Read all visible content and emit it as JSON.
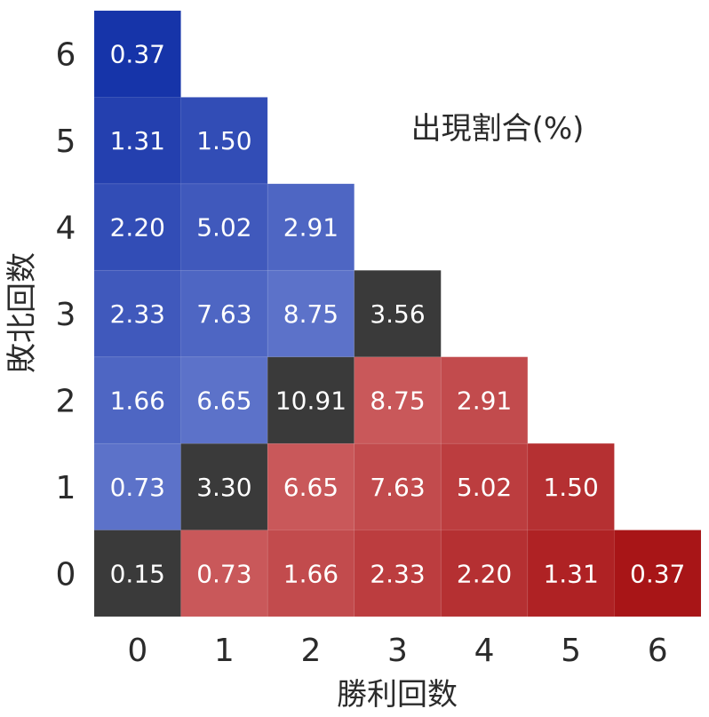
{
  "chart_data": {
    "type": "heatmap",
    "title": "",
    "xlabel": "勝利回数",
    "ylabel": "敗北回数",
    "annotation": "出現割合(%)",
    "x_categories": [
      "0",
      "1",
      "2",
      "3",
      "4",
      "5",
      "6"
    ],
    "y_categories": [
      "0",
      "1",
      "2",
      "3",
      "4",
      "5",
      "6"
    ],
    "cells": [
      {
        "x": 0,
        "y": 0,
        "value": "0.15",
        "group": "draw"
      },
      {
        "x": 1,
        "y": 0,
        "value": "0.73",
        "group": "win"
      },
      {
        "x": 2,
        "y": 0,
        "value": "1.66",
        "group": "win"
      },
      {
        "x": 3,
        "y": 0,
        "value": "2.33",
        "group": "win"
      },
      {
        "x": 4,
        "y": 0,
        "value": "2.20",
        "group": "win"
      },
      {
        "x": 5,
        "y": 0,
        "value": "1.31",
        "group": "win"
      },
      {
        "x": 6,
        "y": 0,
        "value": "0.37",
        "group": "win"
      },
      {
        "x": 0,
        "y": 1,
        "value": "0.73",
        "group": "loss"
      },
      {
        "x": 1,
        "y": 1,
        "value": "3.30",
        "group": "draw"
      },
      {
        "x": 2,
        "y": 1,
        "value": "6.65",
        "group": "win"
      },
      {
        "x": 3,
        "y": 1,
        "value": "7.63",
        "group": "win"
      },
      {
        "x": 4,
        "y": 1,
        "value": "5.02",
        "group": "win"
      },
      {
        "x": 5,
        "y": 1,
        "value": "1.50",
        "group": "win"
      },
      {
        "x": 0,
        "y": 2,
        "value": "1.66",
        "group": "loss"
      },
      {
        "x": 1,
        "y": 2,
        "value": "6.65",
        "group": "loss"
      },
      {
        "x": 2,
        "y": 2,
        "value": "10.91",
        "group": "draw"
      },
      {
        "x": 3,
        "y": 2,
        "value": "8.75",
        "group": "win"
      },
      {
        "x": 4,
        "y": 2,
        "value": "2.91",
        "group": "win"
      },
      {
        "x": 0,
        "y": 3,
        "value": "2.33",
        "group": "loss"
      },
      {
        "x": 1,
        "y": 3,
        "value": "7.63",
        "group": "loss"
      },
      {
        "x": 2,
        "y": 3,
        "value": "8.75",
        "group": "loss"
      },
      {
        "x": 3,
        "y": 3,
        "value": "3.56",
        "group": "draw"
      },
      {
        "x": 0,
        "y": 4,
        "value": "2.20",
        "group": "loss"
      },
      {
        "x": 1,
        "y": 4,
        "value": "5.02",
        "group": "loss"
      },
      {
        "x": 2,
        "y": 4,
        "value": "2.91",
        "group": "loss"
      },
      {
        "x": 0,
        "y": 5,
        "value": "1.31",
        "group": "loss"
      },
      {
        "x": 1,
        "y": 5,
        "value": "1.50",
        "group": "loss"
      },
      {
        "x": 0,
        "y": 6,
        "value": "0.37",
        "group": "loss"
      }
    ],
    "colors": {
      "win_light": "#c9585a",
      "win_dark": "#a81517",
      "loss_light": "#5c72c9",
      "loss_dark": "#1634a9",
      "draw": "#3a3a3a",
      "cell_text": "#ffffff",
      "axis_text": "#2b2b2b",
      "background": "#ffffff"
    },
    "grid": false,
    "legend": "none"
  }
}
